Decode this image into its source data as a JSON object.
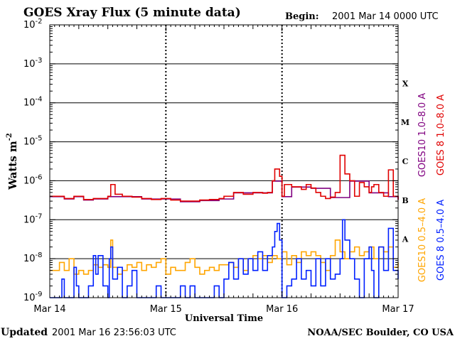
{
  "chart_data": {
    "type": "line",
    "title": "GOES Xray Flux (5 minute data)",
    "begin_label": "Begin:",
    "begin_value": "2001 Mar 14 0000 UTC",
    "updated_label": "Updated",
    "updated_value": "2001 Mar 16 23:56:03 UTC",
    "credit": "NOAA/SEC Boulder, CO USA",
    "xlabel": "Universal Time",
    "ylabel": "Watts m",
    "ylabel_sup": "-2",
    "y_scale": "log",
    "ylim": [
      1e-09,
      0.01
    ],
    "xlim": [
      0,
      72
    ],
    "x_unit": "hours since 2001 Mar 14 0000 UTC",
    "x_ticks": [
      {
        "x": 0,
        "label": "Mar 14"
      },
      {
        "x": 24,
        "label": "Mar 15"
      },
      {
        "x": 48,
        "label": "Mar 16"
      },
      {
        "x": 72,
        "label": "Mar 17"
      }
    ],
    "y_ticks": [
      {
        "exp": -2,
        "base": "10",
        "sup": "-2"
      },
      {
        "exp": -3,
        "base": "10",
        "sup": "-3"
      },
      {
        "exp": -4,
        "base": "10",
        "sup": "-4"
      },
      {
        "exp": -5,
        "base": "10",
        "sup": "-5"
      },
      {
        "exp": -6,
        "base": "10",
        "sup": "-6"
      },
      {
        "exp": -7,
        "base": "10",
        "sup": "-7"
      },
      {
        "exp": -8,
        "base": "10",
        "sup": "-8"
      },
      {
        "exp": -9,
        "base": "10",
        "sup": "-9"
      }
    ],
    "flare_classes": [
      {
        "label": "X",
        "exp": -3.5
      },
      {
        "label": "M",
        "exp": -4.5
      },
      {
        "label": "C",
        "exp": -5.5
      },
      {
        "label": "B",
        "exp": -6.5
      },
      {
        "label": "A",
        "exp": -7.5
      }
    ],
    "grid": true,
    "colors": {
      "goes10_long": "#800080",
      "goes8_long": "#e00000",
      "goes10_short": "#ffa500",
      "goes8_short": "#0020ff"
    },
    "legend_right": [
      {
        "label": "GOES10 1.0–8.0 A",
        "color": "#800080"
      },
      {
        "label": "GOES 8 1.0–8.0 A",
        "color": "#e00000"
      },
      {
        "label": "GOES10 0.5–4.0 A",
        "color": "#ffa500"
      },
      {
        "label": "GOES 8 0.5–4.0 A",
        "color": "#0020ff"
      }
    ],
    "series": [
      {
        "name": "GOES 8 1.0–8.0 A",
        "x": [
          0,
          3,
          5,
          7,
          9,
          11,
          12,
          12.6,
          13.5,
          15,
          17,
          19,
          21,
          23,
          25,
          27,
          29,
          31,
          33,
          35,
          36,
          38,
          40,
          42,
          44,
          45,
          46,
          46.5,
          47.5,
          48,
          48.5,
          50,
          52,
          53,
          54,
          55,
          56,
          57,
          58,
          59,
          60,
          61,
          62,
          63,
          64,
          65,
          66,
          66.5,
          67,
          68,
          69,
          70,
          71,
          72
        ],
        "y": [
          4e-07,
          3.5e-07,
          4e-07,
          3.3e-07,
          3.5e-07,
          3.5e-07,
          4e-07,
          8e-07,
          4.5e-07,
          4e-07,
          3.8e-07,
          3.5e-07,
          3.3e-07,
          3.5e-07,
          3.2e-07,
          3e-07,
          3e-07,
          3.2e-07,
          3.3e-07,
          3.5e-07,
          4e-07,
          5e-07,
          4.5e-07,
          5e-07,
          4.8e-07,
          5e-07,
          1e-06,
          2e-06,
          1.3e-06,
          4e-07,
          8e-07,
          7e-07,
          6e-07,
          8e-07,
          6.5e-07,
          5e-07,
          4e-07,
          3.5e-07,
          3.8e-07,
          5e-07,
          4.5e-06,
          1.5e-06,
          1e-06,
          4e-07,
          9e-07,
          7e-07,
          5e-07,
          7e-07,
          8e-07,
          5e-07,
          4e-07,
          1.9e-06,
          4e-07,
          3.3e-07
        ]
      },
      {
        "name": "GOES10 1.0–8.0 A",
        "x": [
          0,
          3,
          5,
          7,
          9,
          11,
          12,
          15,
          19,
          23,
          27,
          31,
          35,
          38,
          42,
          46,
          48,
          50,
          54,
          58,
          62,
          66,
          70,
          72
        ],
        "y": [
          3.9e-07,
          3.4e-07,
          3.9e-07,
          3.2e-07,
          3.4e-07,
          3.4e-07,
          3.9e-07,
          3.9e-07,
          3.4e-07,
          3.4e-07,
          2.9e-07,
          3.1e-07,
          3.4e-07,
          4.9e-07,
          4.9e-07,
          9.8e-07,
          3.9e-07,
          6.9e-07,
          6.4e-07,
          3.7e-07,
          9.8e-07,
          4.9e-07,
          3.9e-07,
          3.2e-07
        ]
      },
      {
        "name": "GOES10 0.5–4.0 A",
        "x": [
          0,
          1,
          2,
          3,
          4,
          5,
          6,
          7,
          8,
          9,
          10,
          11,
          12,
          12.6,
          13,
          14,
          15,
          16,
          17,
          18,
          19,
          20,
          21,
          22,
          23,
          24,
          25,
          26,
          27,
          28,
          29,
          30,
          31,
          32,
          33,
          34,
          35,
          36,
          37,
          38,
          39,
          40,
          41,
          42,
          43,
          44,
          45,
          46,
          47,
          48,
          49,
          50,
          51,
          52,
          53,
          54,
          55,
          56,
          57,
          58,
          59,
          60,
          61,
          62,
          63,
          64,
          65,
          66,
          67,
          68,
          69,
          70,
          71,
          72
        ],
        "y": [
          5e-09,
          5e-09,
          8e-09,
          5e-09,
          1e-08,
          4e-09,
          5e-09,
          4e-09,
          5e-09,
          7e-09,
          6e-09,
          7e-09,
          6e-09,
          3e-08,
          6e-09,
          4e-09,
          5e-09,
          7e-09,
          6e-09,
          8e-09,
          5e-09,
          7e-09,
          6e-09,
          8e-09,
          1e-08,
          4e-09,
          6e-09,
          5e-09,
          5e-09,
          8e-09,
          1e-08,
          6e-09,
          4e-09,
          5e-09,
          6e-09,
          5e-09,
          7e-09,
          7e-09,
          8e-09,
          6e-09,
          1e-08,
          5e-09,
          1e-08,
          1.2e-08,
          1e-08,
          1.2e-08,
          8e-09,
          1.2e-08,
          1e-08,
          1.5e-08,
          7e-09,
          1.2e-08,
          8e-09,
          1.5e-08,
          1.2e-08,
          1.5e-08,
          1.2e-08,
          8e-09,
          5e-09,
          1.2e-08,
          3e-08,
          1.5e-08,
          1e-08,
          1.5e-08,
          2e-08,
          1.2e-08,
          1.5e-08,
          2e-08,
          1e-08,
          2e-08,
          1.5e-08,
          2e-08,
          6e-09,
          8e-09
        ]
      },
      {
        "name": "GOES 8 0.5–4.0 A",
        "x": [
          0,
          1,
          1.5,
          2,
          2.5,
          3,
          4,
          5,
          5.5,
          6,
          7,
          8,
          9,
          9.5,
          10,
          11,
          12,
          12.3,
          12.6,
          13,
          14,
          15,
          16,
          17,
          18,
          19,
          20,
          21,
          22,
          23,
          24,
          25,
          26,
          27,
          28,
          29,
          30,
          31,
          32,
          33,
          34,
          35,
          36,
          37,
          38,
          39,
          40,
          41,
          42,
          43,
          44,
          45,
          46,
          46.5,
          47,
          47.5,
          48,
          49,
          50,
          51,
          52,
          53,
          54,
          55,
          56,
          57,
          58,
          59,
          60,
          60.5,
          61,
          62,
          63,
          64,
          65,
          66,
          66.5,
          67,
          68,
          69,
          70,
          71,
          72
        ],
        "y": [
          1e-09,
          1e-09,
          1e-09,
          1e-09,
          3e-09,
          1e-09,
          1e-09,
          6e-09,
          2e-09,
          1e-09,
          1e-09,
          2e-09,
          1.2e-08,
          4e-09,
          1.2e-08,
          2e-09,
          1e-09,
          1e-08,
          2e-08,
          3e-09,
          6e-09,
          1e-09,
          2e-09,
          5e-09,
          1e-09,
          1e-09,
          1e-09,
          1e-09,
          2e-09,
          1e-09,
          1e-09,
          1e-09,
          1e-09,
          2e-09,
          1e-09,
          2e-09,
          1e-09,
          1e-09,
          1e-09,
          1e-09,
          2e-09,
          1e-09,
          3e-09,
          8e-09,
          3e-09,
          1e-08,
          4e-09,
          1e-08,
          5e-09,
          1.5e-08,
          5e-09,
          1.2e-08,
          2e-08,
          5e-08,
          8e-08,
          3e-08,
          1e-09,
          2e-09,
          3e-09,
          1e-08,
          3e-09,
          5e-09,
          2e-09,
          1e-08,
          2e-09,
          1e-08,
          3e-09,
          4e-09,
          1e-08,
          1e-07,
          3e-08,
          1e-08,
          3e-09,
          1e-09,
          1e-08,
          2e-08,
          5e-09,
          1e-09,
          2e-08,
          5e-09,
          6e-08,
          5e-09,
          3e-09
        ]
      }
    ]
  }
}
